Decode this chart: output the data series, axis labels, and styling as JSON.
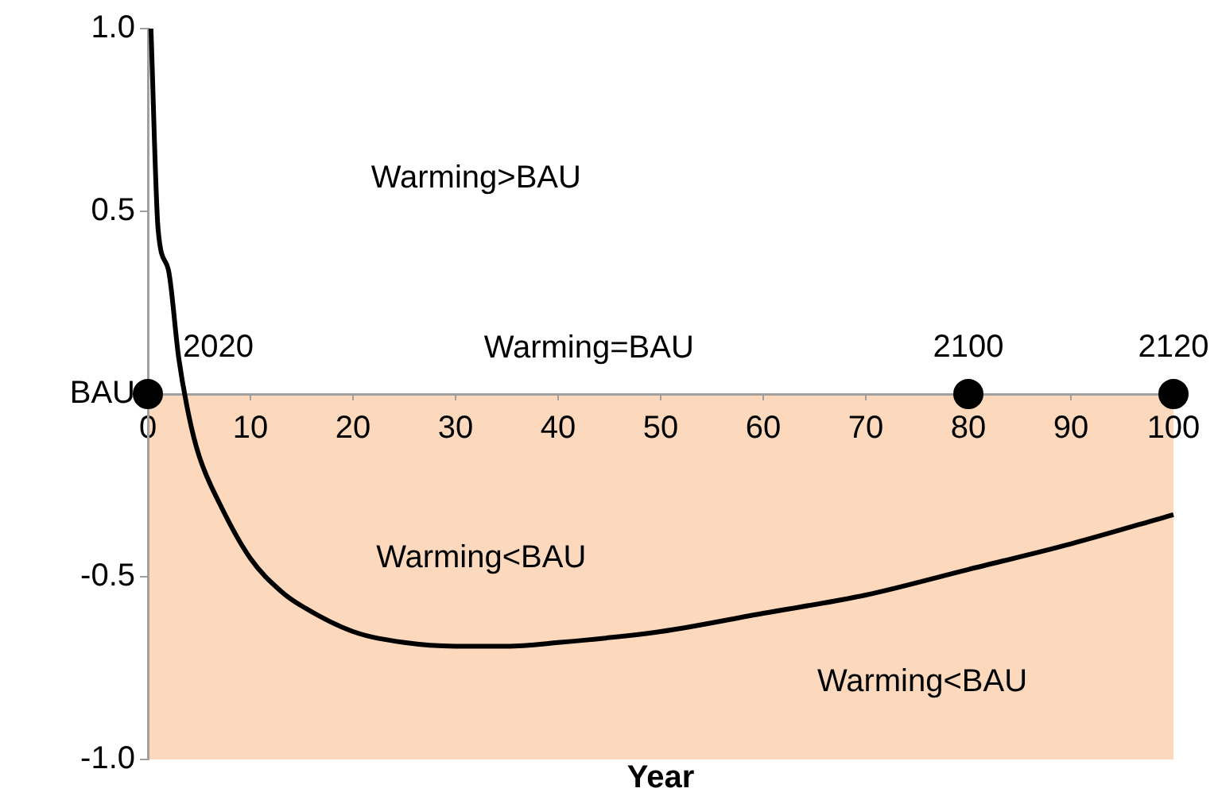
{
  "chart_data": {
    "type": "line",
    "xlabel": "Year",
    "xlim": [
      0,
      100
    ],
    "xticks": [
      0,
      10,
      20,
      30,
      40,
      50,
      60,
      70,
      80,
      90,
      100
    ],
    "ylim": [
      -1,
      1
    ],
    "yticks": [
      {
        "value": 1,
        "label": "1.0"
      },
      0.5,
      {
        "value": 0,
        "label": "BAU"
      },
      -0.5,
      {
        "value": -1,
        "label": "-1.0"
      }
    ],
    "grid": false,
    "legend": false,
    "series": [
      {
        "color": "#000000",
        "marker": "none",
        "x": [
          0.3,
          1,
          2,
          3,
          4,
          5,
          7,
          10,
          13,
          15,
          20,
          25,
          30,
          35,
          40,
          50,
          60,
          70,
          80,
          90,
          100
        ],
        "values": [
          1.0,
          0.45,
          0.34,
          0.1,
          -0.06,
          -0.17,
          -0.3,
          -0.45,
          -0.54,
          -0.58,
          -0.65,
          -0.68,
          -0.69,
          -0.69,
          -0.68,
          -0.65,
          -0.6,
          -0.55,
          -0.48,
          -0.41,
          -0.33
        ]
      },
      {
        "type": "scatter",
        "color": "#000000",
        "marker": "circle",
        "x": [
          0,
          80,
          100
        ],
        "values": [
          0,
          0,
          0
        ]
      }
    ],
    "bands": [
      {
        "axis": "y",
        "from": -1,
        "to": 0,
        "color": "#fcd9bc"
      }
    ],
    "annotations": [
      "Warming>BAU",
      {
        "text": "2020",
        "x": 0,
        "y": 0
      },
      "Warming=BAU",
      {
        "text": "2100",
        "x": 80,
        "y": 0
      },
      {
        "text": "2120",
        "x": 100,
        "y": 0
      },
      "Warming<BAU",
      "Warming<BAU"
    ]
  }
}
